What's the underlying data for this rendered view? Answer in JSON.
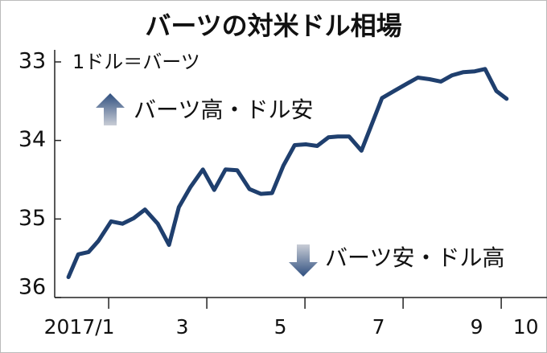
{
  "chart_data": {
    "type": "line",
    "title": "バーツの対米ドル相場",
    "subtitle": "1ドル＝バーツ",
    "annotations": [
      "バーツ高・ドル安",
      "バーツ安・ドル高"
    ],
    "x": [
      1.18,
      1.38,
      1.59,
      1.79,
      2.05,
      2.28,
      2.51,
      2.74,
      3.0,
      3.23,
      3.43,
      3.67,
      3.92,
      4.15,
      4.38,
      4.62,
      4.87,
      5.1,
      5.33,
      5.56,
      5.79,
      6.02,
      6.25,
      6.48,
      6.67,
      6.9,
      7.15,
      7.34,
      7.57,
      7.82,
      8.07,
      8.3,
      8.54,
      8.77,
      9.0,
      9.23,
      9.46,
      9.67,
      9.9,
      10.11
    ],
    "series": [
      {
        "color": "#1f3f6e",
        "values": [
          35.74,
          35.45,
          35.42,
          35.28,
          35.03,
          35.06,
          34.99,
          34.88,
          35.06,
          35.33,
          34.85,
          34.59,
          34.37,
          34.63,
          34.37,
          34.38,
          34.62,
          34.68,
          34.67,
          34.32,
          34.06,
          34.05,
          34.07,
          33.96,
          33.95,
          33.95,
          34.13,
          33.83,
          33.46,
          33.37,
          33.28,
          33.2,
          33.22,
          33.25,
          33.17,
          33.13,
          33.12,
          33.09,
          33.37,
          33.47
        ]
      }
    ],
    "xlim": [
      0.9,
      10.9
    ],
    "xticks": [
      {
        "value": 1.5,
        "label": "2017/1"
      },
      {
        "value": 3.5,
        "label": "3"
      },
      {
        "value": 5.5,
        "label": "5"
      },
      {
        "value": 7.5,
        "label": "7"
      },
      {
        "value": 9.5,
        "label": "9"
      },
      {
        "value": 10.5,
        "label": "10"
      }
    ],
    "ylim": [
      33,
      36
    ],
    "yticks": [
      33,
      34,
      35,
      36
    ],
    "y_inverted": true
  }
}
